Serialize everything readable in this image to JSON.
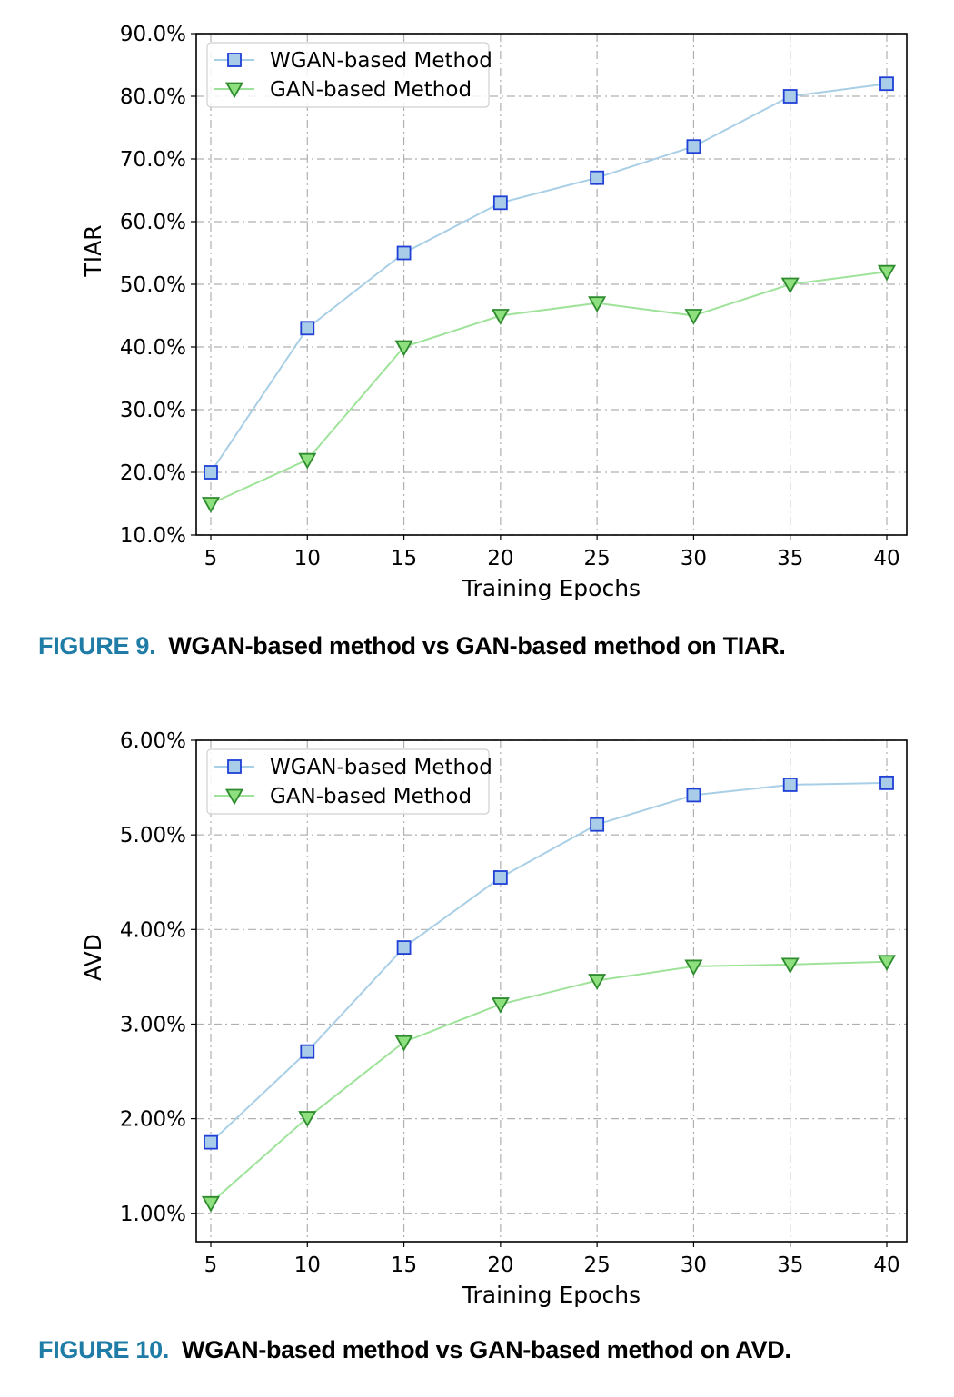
{
  "colors": {
    "wgan_line": "#a9cfe6",
    "wgan_fill": "#a9cde8",
    "wgan_edge": "#1f3fd6",
    "gan_line": "#9fe39a",
    "gan_fill": "#8ee07f",
    "gan_edge": "#2e8b2e",
    "caption_label": "#1f7ca6"
  },
  "figures": [
    {
      "caption_label": "FIGURE 9.",
      "caption_text": "WGAN-based method vs GAN-based method on TIAR."
    },
    {
      "caption_label": "FIGURE 10.",
      "caption_text": "WGAN-based method vs GAN-based method on AVD."
    }
  ],
  "chart_data": [
    {
      "type": "line",
      "title": "",
      "xlabel": "Training Epochs",
      "ylabel": "TIAR",
      "x": [
        5,
        10,
        15,
        20,
        25,
        30,
        35,
        40
      ],
      "xlim": [
        5,
        40
      ],
      "ylim": [
        10,
        90
      ],
      "x_ticks": [
        "5",
        "10",
        "15",
        "20",
        "25",
        "30",
        "35",
        "40"
      ],
      "y_ticks": [
        "10.0%",
        "20.0%",
        "30.0%",
        "40.0%",
        "50.0%",
        "60.0%",
        "70.0%",
        "80.0%",
        "90.0%"
      ],
      "y_tick_values": [
        10,
        20,
        30,
        40,
        50,
        60,
        70,
        80,
        90
      ],
      "grid": true,
      "legend_position": "top-left",
      "series": [
        {
          "name": "WGAN-based Method",
          "marker": "square",
          "values": [
            20,
            43,
            55,
            63,
            67,
            72,
            80,
            82
          ]
        },
        {
          "name": "GAN-based Method",
          "marker": "triangle-down",
          "values": [
            15,
            22,
            40,
            45,
            47,
            45,
            50,
            52
          ]
        }
      ]
    },
    {
      "type": "line",
      "title": "",
      "xlabel": "Training Epochs",
      "ylabel": "AVD",
      "x": [
        5,
        10,
        15,
        20,
        25,
        30,
        35,
        40
      ],
      "xlim": [
        5,
        40
      ],
      "ylim": [
        0.7,
        6.0
      ],
      "x_ticks": [
        "5",
        "10",
        "15",
        "20",
        "25",
        "30",
        "35",
        "40"
      ],
      "y_ticks": [
        "1.00%",
        "2.00%",
        "3.00%",
        "4.00%",
        "5.00%",
        "6.00%"
      ],
      "y_tick_values": [
        1,
        2,
        3,
        4,
        5,
        6
      ],
      "grid": true,
      "legend_position": "top-left",
      "series": [
        {
          "name": "WGAN-based Method",
          "marker": "square",
          "values": [
            1.75,
            2.71,
            3.81,
            4.55,
            5.11,
            5.42,
            5.53,
            5.55
          ]
        },
        {
          "name": "GAN-based Method",
          "marker": "triangle-down",
          "values": [
            1.11,
            2.01,
            2.81,
            3.21,
            3.46,
            3.61,
            3.63,
            3.66
          ]
        }
      ]
    }
  ]
}
